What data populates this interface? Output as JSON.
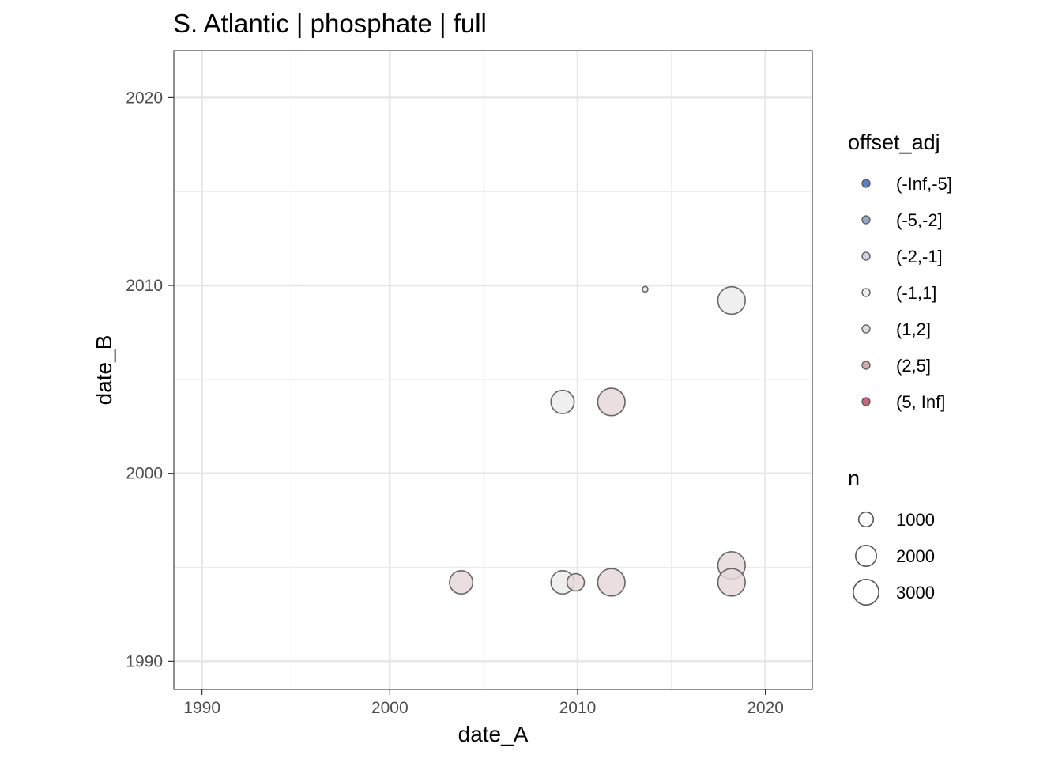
{
  "chart_data": {
    "type": "scatter",
    "title": "S. Atlantic | phosphate | full",
    "xlabel": "date_A",
    "ylabel": "date_B",
    "xlim": [
      1988.5,
      2022.5
    ],
    "ylim": [
      1988.5,
      2022.5
    ],
    "x_ticks": [
      1990,
      2000,
      2010,
      2020
    ],
    "y_ticks": [
      1990,
      2000,
      2010,
      2020
    ],
    "x_tick_labels": [
      "1990",
      "2000",
      "2010",
      "2020"
    ],
    "y_tick_labels": [
      "1990",
      "2000",
      "2010",
      "2020"
    ],
    "grid": true,
    "legend_position": "right",
    "color_legend": {
      "title": "offset_adj",
      "categories": [
        {
          "label": "(-Inf,-5]",
          "color": "#5b7fc4"
        },
        {
          "label": "(-5,-2]",
          "color": "#97a5c9"
        },
        {
          "label": "(-2,-1]",
          "color": "#cdd1e2"
        },
        {
          "label": "(-1,1]",
          "color": "#ececec"
        },
        {
          "label": "(1,2]",
          "color": "#e6d8da"
        },
        {
          "label": "(2,5]",
          "color": "#d6a8b0"
        },
        {
          "label": "(5, Inf]",
          "color": "#c46677"
        }
      ]
    },
    "size_legend": {
      "title": "n",
      "values": [
        1000,
        2000,
        3000
      ],
      "labels": [
        "1000",
        "2000",
        "3000"
      ]
    },
    "points": [
      {
        "x": 2013.6,
        "y": 2009.8,
        "n": 30,
        "offset_adj": "(-1,1]"
      },
      {
        "x": 2018.2,
        "y": 2009.2,
        "n": 2500,
        "offset_adj": "(-1,1]"
      },
      {
        "x": 2009.2,
        "y": 2003.8,
        "n": 1800,
        "offset_adj": "(-1,1]"
      },
      {
        "x": 2011.8,
        "y": 2003.8,
        "n": 2500,
        "offset_adj": "(1,2]"
      },
      {
        "x": 2003.8,
        "y": 1994.2,
        "n": 1800,
        "offset_adj": "(1,2]"
      },
      {
        "x": 2009.2,
        "y": 1994.2,
        "n": 1800,
        "offset_adj": "(-1,1]"
      },
      {
        "x": 2009.9,
        "y": 1994.2,
        "n": 1000,
        "offset_adj": "(1,2]"
      },
      {
        "x": 2011.8,
        "y": 1994.2,
        "n": 2500,
        "offset_adj": "(1,2]"
      },
      {
        "x": 2018.2,
        "y": 1995.1,
        "n": 2500,
        "offset_adj": "(1,2]"
      },
      {
        "x": 2018.2,
        "y": 1994.2,
        "n": 2500,
        "offset_adj": "(1,2]"
      }
    ]
  }
}
